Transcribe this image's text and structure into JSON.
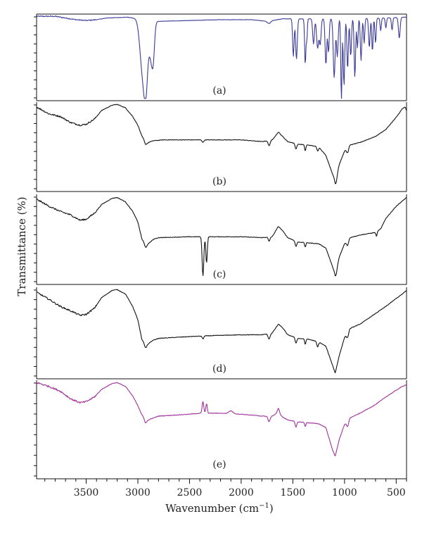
{
  "chart_data": {
    "type": "line",
    "title": "",
    "xlabel_main": "Wavenumber (cm",
    "xlabel_sup": "−1",
    "xlabel_close": ")",
    "ylabel": "Transmittance (%)",
    "xlim": [
      3980,
      400
    ],
    "x_reversed": true,
    "x_ticks": [
      3500,
      3000,
      2500,
      2000,
      1500,
      1000,
      500
    ],
    "x_tick_labels": [
      "3500",
      "3000",
      "2500",
      "2000",
      "1500",
      "1000",
      "500"
    ],
    "y_units": "relative transmittance, 0 = panel bottom, 1 = panel top (no numeric ticks printed)",
    "series": [
      {
        "name": "(a)",
        "color": "#3a3a9a",
        "baseline": 0.97,
        "background": [
          [
            3980,
            0.99
          ],
          [
            3800,
            0.99
          ],
          [
            3700,
            0.97
          ],
          [
            3600,
            0.95
          ],
          [
            3500,
            0.94
          ],
          [
            3400,
            0.95
          ],
          [
            3300,
            0.97
          ],
          [
            3100,
            0.98
          ],
          [
            3000,
            0.96
          ],
          [
            2800,
            0.93
          ],
          [
            2500,
            0.94
          ],
          [
            2200,
            0.95
          ],
          [
            1900,
            0.95
          ],
          [
            1750,
            0.93
          ],
          [
            1600,
            0.96
          ],
          [
            1000,
            0.96
          ],
          [
            600,
            0.97
          ],
          [
            400,
            0.98
          ]
        ],
        "bands": [
          [
            2955,
            0.6,
            25
          ],
          [
            2922,
            0.7,
            18
          ],
          [
            2870,
            0.45,
            20
          ],
          [
            2850,
            0.25,
            12
          ],
          [
            1730,
            0.03,
            15
          ],
          [
            1495,
            0.45,
            7
          ],
          [
            1465,
            0.48,
            8
          ],
          [
            1380,
            0.55,
            6
          ],
          [
            1365,
            0.25,
            5
          ],
          [
            1300,
            0.3,
            8
          ],
          [
            1260,
            0.35,
            10
          ],
          [
            1235,
            0.3,
            8
          ],
          [
            1180,
            0.55,
            8
          ],
          [
            1155,
            0.4,
            7
          ],
          [
            1100,
            0.7,
            9
          ],
          [
            1070,
            0.45,
            8
          ],
          [
            1030,
            0.98,
            6
          ],
          [
            1005,
            0.8,
            7
          ],
          [
            970,
            0.6,
            7
          ],
          [
            940,
            0.45,
            7
          ],
          [
            900,
            0.7,
            7
          ],
          [
            875,
            0.35,
            6
          ],
          [
            840,
            0.5,
            7
          ],
          [
            810,
            0.3,
            6
          ],
          [
            760,
            0.35,
            7
          ],
          [
            730,
            0.4,
            6
          ],
          [
            700,
            0.3,
            6
          ],
          [
            650,
            0.15,
            6
          ],
          [
            600,
            0.12,
            6
          ],
          [
            540,
            0.15,
            6
          ],
          [
            470,
            0.25,
            8
          ]
        ]
      },
      {
        "name": "(b)",
        "color": "#111111",
        "baseline": 0.57,
        "background": [
          [
            3980,
            0.96
          ],
          [
            3860,
            0.88
          ],
          [
            3750,
            0.85
          ],
          [
            3650,
            0.78
          ],
          [
            3560,
            0.75
          ],
          [
            3500,
            0.76
          ],
          [
            3420,
            0.82
          ],
          [
            3350,
            0.92
          ],
          [
            3250,
            0.98
          ],
          [
            3200,
            0.99
          ],
          [
            3120,
            0.95
          ],
          [
            3050,
            0.85
          ],
          [
            3000,
            0.75
          ],
          [
            2960,
            0.62
          ],
          [
            2900,
            0.55
          ],
          [
            2850,
            0.57
          ],
          [
            2750,
            0.58
          ],
          [
            2500,
            0.58
          ],
          [
            2300,
            0.58
          ],
          [
            2000,
            0.58
          ],
          [
            1800,
            0.56
          ],
          [
            1700,
            0.58
          ],
          [
            1640,
            0.67
          ],
          [
            1600,
            0.62
          ],
          [
            1550,
            0.56
          ],
          [
            1450,
            0.53
          ],
          [
            1350,
            0.52
          ],
          [
            1250,
            0.5
          ],
          [
            1180,
            0.4
          ],
          [
            1120,
            0.2
          ],
          [
            1090,
            0.1
          ],
          [
            1050,
            0.3
          ],
          [
            1000,
            0.45
          ],
          [
            950,
            0.52
          ],
          [
            850,
            0.55
          ],
          [
            700,
            0.62
          ],
          [
            600,
            0.7
          ],
          [
            500,
            0.84
          ],
          [
            440,
            0.94
          ],
          [
            400,
            0.97
          ]
        ],
        "bands": [
          [
            2925,
            0.05,
            12
          ],
          [
            2370,
            0.03,
            8
          ],
          [
            1730,
            0.06,
            10
          ],
          [
            1470,
            0.06,
            8
          ],
          [
            1380,
            0.07,
            6
          ],
          [
            1260,
            0.05,
            8
          ],
          [
            1080,
            0.06,
            8
          ],
          [
            970,
            0.06,
            10
          ],
          [
            400,
            0.05,
            6
          ]
        ]
      },
      {
        "name": "(c)",
        "color": "#111111",
        "baseline": 0.55,
        "background": [
          [
            3980,
            0.96
          ],
          [
            3860,
            0.88
          ],
          [
            3750,
            0.82
          ],
          [
            3650,
            0.78
          ],
          [
            3560,
            0.72
          ],
          [
            3500,
            0.73
          ],
          [
            3420,
            0.8
          ],
          [
            3350,
            0.9
          ],
          [
            3250,
            0.97
          ],
          [
            3200,
            0.98
          ],
          [
            3120,
            0.93
          ],
          [
            3050,
            0.82
          ],
          [
            3000,
            0.7
          ],
          [
            2960,
            0.5
          ],
          [
            2900,
            0.45
          ],
          [
            2850,
            0.5
          ],
          [
            2800,
            0.52
          ],
          [
            2500,
            0.53
          ],
          [
            2400,
            0.53
          ],
          [
            2200,
            0.53
          ],
          [
            2000,
            0.53
          ],
          [
            1800,
            0.52
          ],
          [
            1700,
            0.53
          ],
          [
            1640,
            0.65
          ],
          [
            1600,
            0.6
          ],
          [
            1550,
            0.52
          ],
          [
            1450,
            0.47
          ],
          [
            1350,
            0.46
          ],
          [
            1250,
            0.45
          ],
          [
            1180,
            0.4
          ],
          [
            1120,
            0.2
          ],
          [
            1090,
            0.1
          ],
          [
            1050,
            0.3
          ],
          [
            1000,
            0.45
          ],
          [
            950,
            0.52
          ],
          [
            850,
            0.55
          ],
          [
            700,
            0.58
          ],
          [
            650,
            0.62
          ],
          [
            600,
            0.74
          ],
          [
            500,
            0.88
          ],
          [
            440,
            0.94
          ],
          [
            400,
            0.98
          ]
        ],
        "bands": [
          [
            2925,
            0.06,
            12
          ],
          [
            2370,
            0.45,
            8
          ],
          [
            2335,
            0.3,
            7
          ],
          [
            1730,
            0.05,
            8
          ],
          [
            1470,
            0.06,
            8
          ],
          [
            1380,
            0.05,
            6
          ],
          [
            1080,
            0.05,
            8
          ],
          [
            970,
            0.06,
            10
          ],
          [
            690,
            0.05,
            6
          ]
        ]
      },
      {
        "name": "(d)",
        "color": "#111111",
        "baseline": 0.48,
        "background": [
          [
            3980,
            0.96
          ],
          [
            3860,
            0.88
          ],
          [
            3750,
            0.8
          ],
          [
            3650,
            0.75
          ],
          [
            3560,
            0.7
          ],
          [
            3500,
            0.71
          ],
          [
            3420,
            0.78
          ],
          [
            3350,
            0.9
          ],
          [
            3250,
            0.98
          ],
          [
            3200,
            0.99
          ],
          [
            3120,
            0.94
          ],
          [
            3050,
            0.8
          ],
          [
            3000,
            0.65
          ],
          [
            2960,
            0.42
          ],
          [
            2900,
            0.38
          ],
          [
            2850,
            0.42
          ],
          [
            2800,
            0.44
          ],
          [
            2500,
            0.46
          ],
          [
            2300,
            0.47
          ],
          [
            2000,
            0.48
          ],
          [
            1800,
            0.48
          ],
          [
            1700,
            0.5
          ],
          [
            1640,
            0.6
          ],
          [
            1600,
            0.56
          ],
          [
            1550,
            0.48
          ],
          [
            1450,
            0.44
          ],
          [
            1350,
            0.43
          ],
          [
            1250,
            0.4
          ],
          [
            1180,
            0.35
          ],
          [
            1120,
            0.15
          ],
          [
            1090,
            0.05
          ],
          [
            1050,
            0.25
          ],
          [
            1000,
            0.45
          ],
          [
            950,
            0.55
          ],
          [
            850,
            0.6
          ],
          [
            700,
            0.72
          ],
          [
            600,
            0.8
          ],
          [
            500,
            0.89
          ],
          [
            440,
            0.94
          ],
          [
            400,
            0.98
          ]
        ],
        "bands": [
          [
            2925,
            0.06,
            12
          ],
          [
            2370,
            0.03,
            8
          ],
          [
            1730,
            0.06,
            10
          ],
          [
            1470,
            0.06,
            8
          ],
          [
            1380,
            0.06,
            6
          ],
          [
            1260,
            0.06,
            8
          ],
          [
            970,
            0.06,
            10
          ]
        ]
      },
      {
        "name": "(e)",
        "color": "#a0329b",
        "baseline": 0.6,
        "background": [
          [
            3980,
            0.99
          ],
          [
            3860,
            0.95
          ],
          [
            3750,
            0.9
          ],
          [
            3650,
            0.82
          ],
          [
            3560,
            0.78
          ],
          [
            3500,
            0.79
          ],
          [
            3420,
            0.84
          ],
          [
            3350,
            0.92
          ],
          [
            3250,
            0.98
          ],
          [
            3200,
            0.99
          ],
          [
            3120,
            0.95
          ],
          [
            3050,
            0.85
          ],
          [
            3000,
            0.75
          ],
          [
            2960,
            0.65
          ],
          [
            2900,
            0.6
          ],
          [
            2850,
            0.62
          ],
          [
            2800,
            0.64
          ],
          [
            2500,
            0.66
          ],
          [
            2400,
            0.67
          ],
          [
            2200,
            0.67
          ],
          [
            2000,
            0.66
          ],
          [
            1800,
            0.64
          ],
          [
            1700,
            0.64
          ],
          [
            1640,
            0.68
          ],
          [
            1600,
            0.63
          ],
          [
            1550,
            0.6
          ],
          [
            1450,
            0.58
          ],
          [
            1350,
            0.57
          ],
          [
            1250,
            0.56
          ],
          [
            1180,
            0.52
          ],
          [
            1120,
            0.3
          ],
          [
            1090,
            0.22
          ],
          [
            1050,
            0.4
          ],
          [
            1000,
            0.55
          ],
          [
            950,
            0.62
          ],
          [
            850,
            0.67
          ],
          [
            700,
            0.76
          ],
          [
            600,
            0.84
          ],
          [
            500,
            0.91
          ],
          [
            440,
            0.95
          ],
          [
            400,
            0.97
          ]
        ],
        "bands": [
          [
            2925,
            0.05,
            12
          ],
          [
            2370,
            -0.12,
            8
          ],
          [
            2335,
            -0.1,
            7
          ],
          [
            2100,
            -0.03,
            20
          ],
          [
            1730,
            0.06,
            10
          ],
          [
            1640,
            -0.04,
            10
          ],
          [
            1470,
            0.06,
            8
          ],
          [
            1380,
            0.04,
            6
          ],
          [
            970,
            0.06,
            10
          ]
        ]
      }
    ]
  }
}
